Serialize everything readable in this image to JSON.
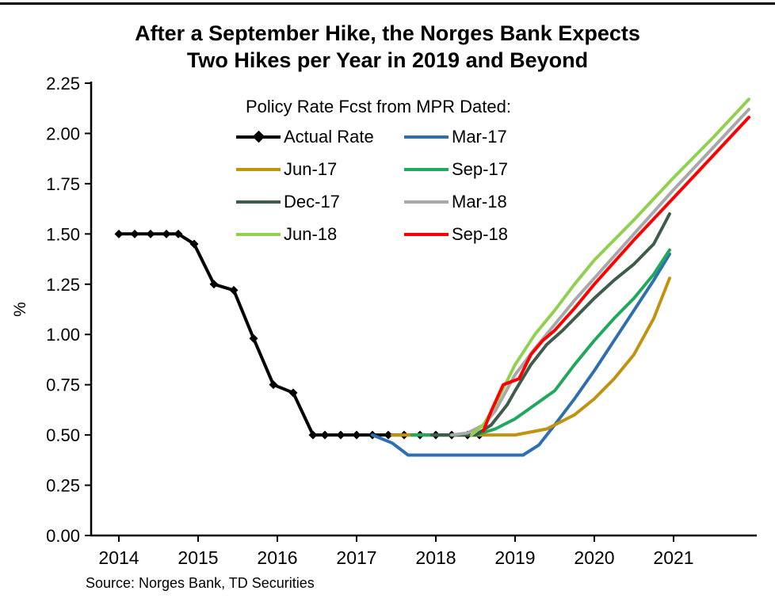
{
  "title": {
    "line1": "After a September Hike, the Norges Bank Expects",
    "line2": "Two Hikes per Year in 2019 and Beyond"
  },
  "source": "Source: Norges Bank, TD Securities",
  "chart_data": {
    "type": "line",
    "legend_title": "Policy Rate Fcst from MPR Dated:",
    "ylabel": "%",
    "xlim": [
      2013.65,
      2022.05
    ],
    "ylim": [
      0,
      2.25
    ],
    "y_ticks": [
      0.0,
      0.25,
      0.5,
      0.75,
      1.0,
      1.25,
      1.5,
      1.75,
      2.0,
      2.25
    ],
    "x_ticks": [
      2014,
      2015,
      2016,
      2017,
      2018,
      2019,
      2020,
      2021
    ],
    "legend_position": "top-center-inside",
    "grid": false,
    "series": [
      {
        "name": "Actual Rate",
        "color": "#000000",
        "marker": "diamond",
        "width": 4,
        "points": [
          [
            2014.0,
            1.5
          ],
          [
            2014.2,
            1.5
          ],
          [
            2014.4,
            1.5
          ],
          [
            2014.6,
            1.5
          ],
          [
            2014.75,
            1.5
          ],
          [
            2014.95,
            1.45
          ],
          [
            2015.2,
            1.25
          ],
          [
            2015.45,
            1.22
          ],
          [
            2015.7,
            0.98
          ],
          [
            2015.95,
            0.75
          ],
          [
            2016.2,
            0.71
          ],
          [
            2016.45,
            0.5
          ],
          [
            2016.6,
            0.5
          ],
          [
            2016.8,
            0.5
          ],
          [
            2017.0,
            0.5
          ],
          [
            2017.2,
            0.5
          ],
          [
            2017.4,
            0.5
          ],
          [
            2017.6,
            0.5
          ],
          [
            2017.8,
            0.5
          ],
          [
            2018.0,
            0.5
          ],
          [
            2018.2,
            0.5
          ],
          [
            2018.4,
            0.5
          ],
          [
            2018.55,
            0.5
          ]
        ]
      },
      {
        "name": "Mar-17",
        "color": "#2f6fb0",
        "marker": "none",
        "width": 4,
        "points": [
          [
            2017.2,
            0.5
          ],
          [
            2017.45,
            0.46
          ],
          [
            2017.65,
            0.4
          ],
          [
            2018.5,
            0.4
          ],
          [
            2019.1,
            0.4
          ],
          [
            2019.3,
            0.45
          ],
          [
            2019.5,
            0.55
          ],
          [
            2019.75,
            0.68
          ],
          [
            2020.0,
            0.82
          ],
          [
            2020.25,
            0.97
          ],
          [
            2020.5,
            1.12
          ],
          [
            2020.75,
            1.27
          ],
          [
            2020.95,
            1.4
          ]
        ]
      },
      {
        "name": "Jun-17",
        "color": "#c09310",
        "marker": "none",
        "width": 4,
        "points": [
          [
            2017.45,
            0.5
          ],
          [
            2018.5,
            0.5
          ],
          [
            2019.0,
            0.5
          ],
          [
            2019.4,
            0.53
          ],
          [
            2019.75,
            0.6
          ],
          [
            2020.0,
            0.68
          ],
          [
            2020.25,
            0.78
          ],
          [
            2020.5,
            0.9
          ],
          [
            2020.75,
            1.08
          ],
          [
            2020.95,
            1.28
          ]
        ]
      },
      {
        "name": "Sep-17",
        "color": "#22a85c",
        "marker": "none",
        "width": 4,
        "points": [
          [
            2017.7,
            0.5
          ],
          [
            2018.5,
            0.5
          ],
          [
            2018.75,
            0.53
          ],
          [
            2019.0,
            0.58
          ],
          [
            2019.25,
            0.65
          ],
          [
            2019.5,
            0.72
          ],
          [
            2019.75,
            0.85
          ],
          [
            2020.0,
            0.97
          ],
          [
            2020.25,
            1.08
          ],
          [
            2020.5,
            1.18
          ],
          [
            2020.75,
            1.3
          ],
          [
            2020.95,
            1.42
          ]
        ]
      },
      {
        "name": "Dec-17",
        "color": "#3d5c49",
        "marker": "none",
        "width": 4,
        "points": [
          [
            2017.95,
            0.5
          ],
          [
            2018.5,
            0.5
          ],
          [
            2018.7,
            0.55
          ],
          [
            2018.9,
            0.65
          ],
          [
            2019.0,
            0.72
          ],
          [
            2019.2,
            0.85
          ],
          [
            2019.4,
            0.95
          ],
          [
            2019.6,
            1.02
          ],
          [
            2019.8,
            1.1
          ],
          [
            2020.0,
            1.18
          ],
          [
            2020.25,
            1.27
          ],
          [
            2020.5,
            1.35
          ],
          [
            2020.75,
            1.45
          ],
          [
            2020.95,
            1.6
          ]
        ]
      },
      {
        "name": "Mar-18",
        "color": "#a8a8a8",
        "marker": "none",
        "width": 4,
        "points": [
          [
            2018.2,
            0.5
          ],
          [
            2018.4,
            0.51
          ],
          [
            2018.6,
            0.55
          ],
          [
            2018.75,
            0.62
          ],
          [
            2019.0,
            0.8
          ],
          [
            2019.25,
            0.93
          ],
          [
            2019.5,
            1.05
          ],
          [
            2019.75,
            1.17
          ],
          [
            2020.0,
            1.28
          ],
          [
            2020.5,
            1.5
          ],
          [
            2021.0,
            1.72
          ],
          [
            2021.5,
            1.93
          ],
          [
            2021.95,
            2.12
          ]
        ]
      },
      {
        "name": "Jun-18",
        "color": "#92d050",
        "marker": "none",
        "width": 4,
        "points": [
          [
            2018.45,
            0.5
          ],
          [
            2018.6,
            0.55
          ],
          [
            2018.75,
            0.65
          ],
          [
            2019.0,
            0.85
          ],
          [
            2019.25,
            1.0
          ],
          [
            2019.5,
            1.12
          ],
          [
            2019.75,
            1.25
          ],
          [
            2020.0,
            1.37
          ],
          [
            2020.5,
            1.57
          ],
          [
            2021.0,
            1.78
          ],
          [
            2021.5,
            1.98
          ],
          [
            2021.95,
            2.17
          ]
        ]
      },
      {
        "name": "Sep-18",
        "color": "#fe0000",
        "marker": "none",
        "width": 4,
        "points": [
          [
            2018.6,
            0.52
          ],
          [
            2018.7,
            0.62
          ],
          [
            2018.85,
            0.75
          ],
          [
            2019.05,
            0.78
          ],
          [
            2019.2,
            0.9
          ],
          [
            2019.35,
            0.97
          ],
          [
            2019.5,
            1.02
          ],
          [
            2019.75,
            1.13
          ],
          [
            2020.0,
            1.25
          ],
          [
            2020.5,
            1.47
          ],
          [
            2021.0,
            1.68
          ],
          [
            2021.5,
            1.89
          ],
          [
            2021.95,
            2.08
          ]
        ]
      }
    ]
  }
}
